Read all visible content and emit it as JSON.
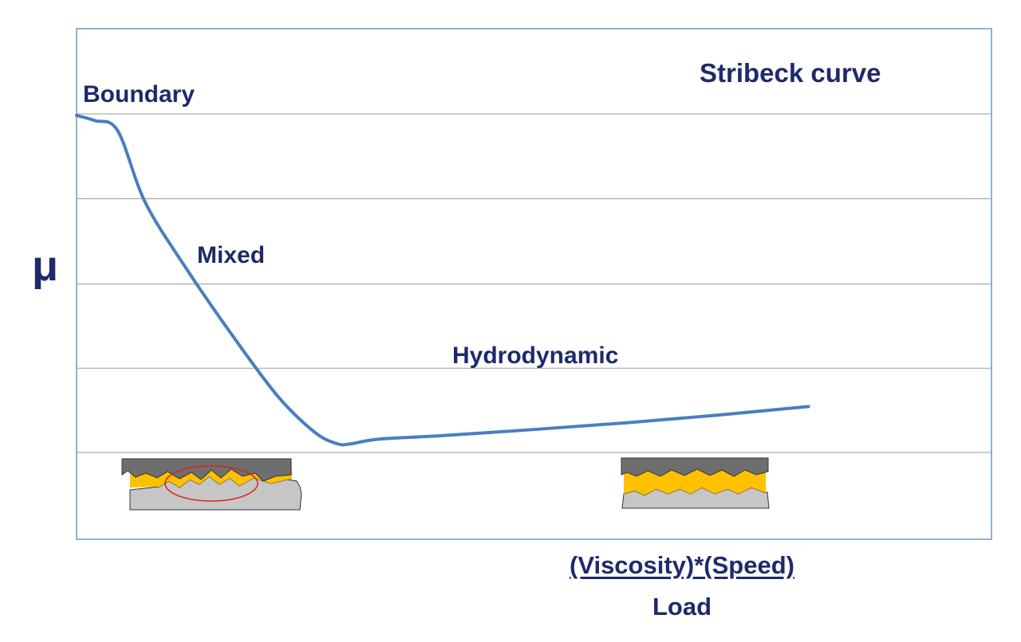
{
  "chart_data": {
    "type": "line",
    "title": "Stribeck curve",
    "ylabel": "μ",
    "xlabel_numerator": "(Viscosity)*(Speed)",
    "xlabel_denominator": "Load",
    "grid": true,
    "regions": [
      "Boundary",
      "Mixed",
      "Hydrodynamic"
    ],
    "xlim": [
      0,
      1
    ],
    "ylim": [
      0,
      1
    ],
    "series": [
      {
        "color": "#4a7ebf",
        "x": [
          0,
          0.02,
          0.045,
          0.075,
          0.12,
          0.17,
          0.22,
          0.26,
          0.285,
          0.3,
          0.33,
          0.4,
          0.5,
          0.6,
          0.7,
          0.8
        ],
        "y": [
          0.83,
          0.82,
          0.8,
          0.66,
          0.53,
          0.4,
          0.28,
          0.21,
          0.187,
          0.187,
          0.196,
          0.203,
          0.215,
          0.228,
          0.243,
          0.26
        ]
      }
    ]
  },
  "colors": {
    "curve": "#4a7ebf",
    "text": "#1f2a6b",
    "frame": "#8fb0d8",
    "grid": "#9a9a9a",
    "lubricant": "#ffc000",
    "top_surface": "#6e6e6e",
    "bottom_surface": "#c6c6c6",
    "highlight": "#e02020"
  }
}
